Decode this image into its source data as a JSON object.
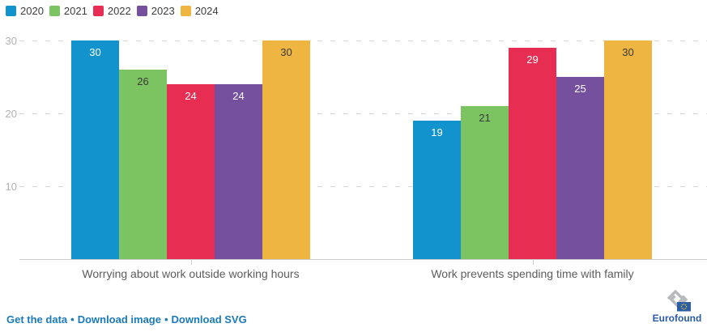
{
  "chart_data": {
    "type": "bar",
    "title": "",
    "categories": [
      "Worrying about work outside working hours",
      "Work prevents spending time with family"
    ],
    "series": [
      {
        "name": "2020",
        "color": "#1293ce",
        "label_color": "#ffffff",
        "values": [
          30,
          19
        ]
      },
      {
        "name": "2021",
        "color": "#7cc362",
        "label_color": "#3a3a3a",
        "values": [
          26,
          21
        ]
      },
      {
        "name": "2022",
        "color": "#e72e52",
        "label_color": "#ffffff",
        "values": [
          24,
          29
        ]
      },
      {
        "name": "2023",
        "color": "#74509f",
        "label_color": "#ffffff",
        "values": [
          24,
          25
        ]
      },
      {
        "name": "2024",
        "color": "#efb541",
        "label_color": "#3a3a3a",
        "values": [
          30,
          30
        ]
      }
    ],
    "ylim": [
      0,
      30
    ],
    "yticks": [
      10,
      20,
      30
    ],
    "grid": true,
    "grid_style": "dashed",
    "legend_position": "top-left",
    "value_labels": true
  },
  "footer": {
    "links": [
      {
        "label": "Get the data"
      },
      {
        "label": "Download image"
      },
      {
        "label": "Download SVG"
      }
    ],
    "separator": "•",
    "link_color": "#1b7ab8"
  },
  "branding": {
    "logo_text": "Eurofound",
    "logo_text_color": "#2a5ba6",
    "logo_link_gray": "#b7babd",
    "flag_blue": "#2b5ea7",
    "star_yellow": "#f4d015"
  }
}
